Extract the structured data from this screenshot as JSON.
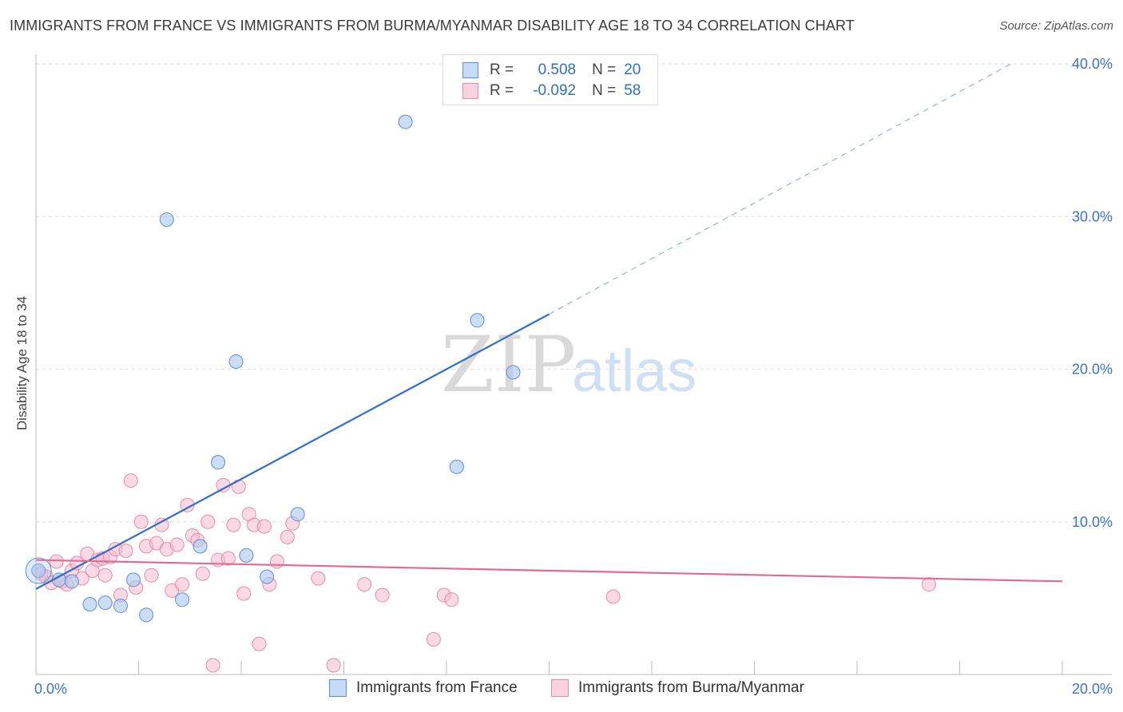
{
  "title": "IMMIGRANTS FROM FRANCE VS IMMIGRANTS FROM BURMA/MYANMAR DISABILITY AGE 18 TO 34 CORRELATION CHART",
  "source": "Source: ZipAtlas.com",
  "watermark": {
    "zip": "ZIP",
    "atlas": "atlas"
  },
  "legend": {
    "france": {
      "r_label": "R =",
      "r_value": "0.508",
      "n_label": "N =",
      "n_value": "20"
    },
    "burma": {
      "r_label": "R =",
      "r_value": "-0.092",
      "n_label": "N =",
      "n_value": "58"
    }
  },
  "colors": {
    "france_fill": "#a9c8f0",
    "france_stroke": "#5b8fd6",
    "france_line": "#2d6fcb",
    "burma_fill": "#f7bccf",
    "burma_stroke": "#e88aa8",
    "burma_line": "#e06b95",
    "tick_label": "#3b73c8",
    "grid": "#dddddd"
  },
  "chart_data": {
    "type": "scatter",
    "title": "IMMIGRANTS FROM FRANCE VS IMMIGRANTS FROM BURMA/MYANMAR DISABILITY AGE 18 TO 34 CORRELATION CHART",
    "xlabel": "",
    "ylabel": "Disability Age 18 to 34",
    "xlim": [
      0,
      20
    ],
    "ylim": [
      0,
      40
    ],
    "x_tick_labels": [
      "0.0%",
      "20.0%"
    ],
    "y_ticks": [
      10,
      20,
      30,
      40
    ],
    "y_tick_labels": [
      "10.0%",
      "20.0%",
      "30.0%",
      "40.0%"
    ],
    "grid": true,
    "legend_position": "top-center",
    "series": [
      {
        "name": "Immigrants from France",
        "x": [
          0.05,
          0.45,
          0.7,
          1.05,
          1.35,
          1.65,
          1.9,
          2.15,
          2.55,
          2.85,
          3.2,
          3.55,
          3.9,
          4.1,
          4.5,
          5.1,
          7.2,
          8.2,
          8.6,
          9.3
        ],
        "y": [
          6.8,
          6.2,
          6.1,
          4.6,
          4.7,
          4.5,
          6.2,
          3.9,
          29.8,
          4.9,
          8.4,
          13.9,
          20.5,
          7.8,
          6.4,
          10.5,
          36.2,
          13.6,
          23.2,
          19.8
        ],
        "trendline": {
          "x": [
            0,
            10
          ],
          "y": [
            5.6,
            23.6
          ],
          "extrapolated": {
            "x": [
              10,
              19
            ],
            "y": [
              23.6,
              40.0
            ]
          }
        }
      },
      {
        "name": "Immigrants from Burma/Myanmar",
        "x": [
          0.1,
          0.2,
          0.3,
          0.4,
          0.5,
          0.6,
          0.7,
          0.8,
          0.9,
          1.0,
          1.1,
          1.2,
          1.3,
          1.35,
          1.45,
          1.55,
          1.65,
          1.75,
          1.85,
          1.95,
          2.05,
          2.15,
          2.25,
          2.35,
          2.45,
          2.55,
          2.65,
          2.75,
          2.85,
          2.95,
          3.05,
          3.15,
          3.25,
          3.35,
          3.45,
          3.55,
          3.65,
          3.75,
          3.85,
          3.95,
          4.05,
          4.15,
          4.25,
          4.35,
          4.45,
          4.55,
          4.7,
          4.9,
          5.0,
          5.5,
          5.8,
          6.4,
          6.75,
          7.75,
          7.95,
          8.1,
          11.25,
          17.4
        ],
        "y": [
          6.6,
          6.4,
          6.0,
          7.4,
          6.1,
          5.9,
          6.8,
          7.3,
          6.3,
          7.9,
          6.8,
          7.5,
          7.6,
          6.5,
          7.7,
          8.2,
          5.2,
          8.1,
          12.7,
          5.7,
          10.0,
          8.4,
          6.5,
          8.6,
          9.8,
          8.2,
          5.5,
          8.5,
          5.9,
          11.1,
          9.1,
          8.8,
          6.6,
          10.0,
          0.6,
          7.5,
          12.4,
          7.6,
          9.8,
          12.3,
          5.3,
          10.5,
          9.8,
          2.0,
          9.7,
          5.9,
          7.4,
          9.0,
          9.9,
          6.3,
          0.6,
          5.9,
          5.2,
          2.3,
          5.2,
          4.9,
          5.1,
          5.9
        ],
        "trendline": {
          "x": [
            0,
            20
          ],
          "y": [
            7.5,
            6.1
          ]
        }
      }
    ]
  },
  "bottom_legend": {
    "france": "Immigrants from France",
    "burma": "Immigrants from Burma/Myanmar"
  }
}
